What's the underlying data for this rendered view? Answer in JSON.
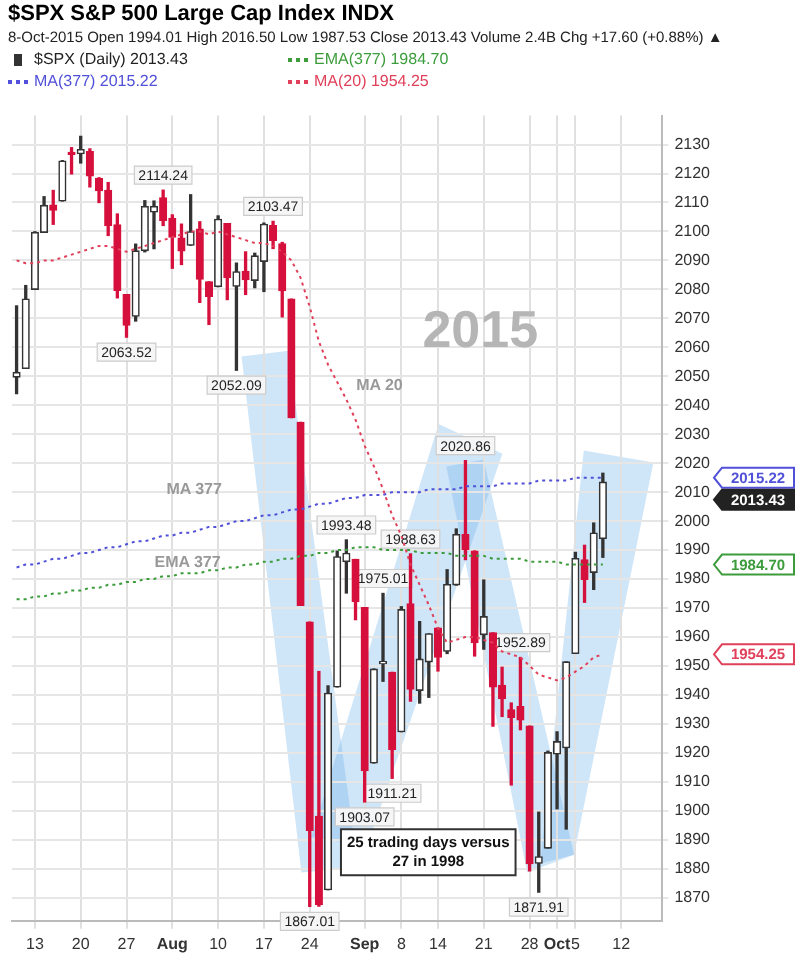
{
  "chart_data": {
    "type": "candlestick",
    "title": "$SPX S&P 500 Large Cap Index INDX",
    "subtitle": "8-Oct-2015   Open 1994.01  High 2016.50  Low 1987.53  Close 2013.43  Volume 2.4B  Chg +17.60 (+0.88%) ▲",
    "categories": [
      null,
      null,
      "13",
      null,
      null,
      null,
      null,
      "20",
      null,
      null,
      null,
      null,
      "27",
      null,
      null,
      null,
      null,
      "Aug",
      null,
      null,
      null,
      null,
      "10",
      null,
      null,
      null,
      null,
      "17",
      null,
      null,
      null,
      null,
      "24",
      null,
      null,
      null,
      null,
      null,
      "Sep",
      null,
      null,
      null,
      "8",
      null,
      null,
      null,
      "14",
      null,
      null,
      null,
      null,
      "21",
      null,
      null,
      null,
      null,
      "28",
      null,
      null,
      "Oct",
      null,
      "5",
      null,
      null,
      null,
      null,
      "12",
      null,
      null,
      null,
      null
    ],
    "series": [
      {
        "name": "$SPX (Daily) 2013.43",
        "colors": [
          "#333333",
          "#333333",
          "#333333",
          "#333333",
          "#d6103c",
          "#333333",
          "#d6103c",
          "#333333",
          "#d6103c",
          "#d6103c",
          "#d6103c",
          "#d6103c",
          "#d6103c",
          "#333333",
          "#333333",
          "#333333",
          "#d6103c",
          "#d6103c",
          "#d6103c",
          "#333333",
          "#d6103c",
          "#d6103c",
          "#333333",
          "#d6103c",
          "#333333",
          "#d6103c",
          "#333333",
          "#333333",
          "#d6103c",
          "#d6103c",
          "#d6103c",
          "#d6103c",
          "#d6103c",
          "#d6103c",
          "#333333",
          "#333333",
          "#333333",
          "#d6103c",
          "#d6103c",
          "#333333",
          "#333333",
          "#d6103c",
          "#333333",
          "#d6103c",
          "#333333",
          "#333333",
          "#d6103c",
          "#333333",
          "#333333",
          "#d6103c",
          "#d6103c",
          "#333333",
          "#d6103c",
          "#d6103c",
          "#d6103c",
          "#d6103c",
          "#d6103c",
          "#333333",
          "#333333",
          "#333333",
          "#333333",
          "#333333",
          "#d6103c",
          "#333333",
          "#333333",
          null,
          null,
          null,
          null,
          null,
          null
        ],
        "ohlc": [
          [
            2049.73,
            2074.28,
            2044.02,
            2051.31
          ],
          [
            2052.74,
            2081.31,
            2052.74,
            2076.62
          ],
          [
            2080.03,
            2099.88,
            2080.03,
            2099.6
          ],
          [
            2099.72,
            2111.98,
            2099.72,
            2108.95
          ],
          [
            2109.04,
            2114.14,
            2102.49,
            2107.4
          ],
          [
            2110.55,
            2124.42,
            2110.55,
            2124.29
          ],
          [
            2126.8,
            2128.91,
            2119.88,
            2126.64
          ],
          [
            2126.85,
            2132.82,
            2123.66,
            2128.28
          ],
          [
            2127.55,
            2128.49,
            2115.4,
            2119.21
          ],
          [
            2118.21,
            2118.51,
            2110,
            2114.15
          ],
          [
            2114.16,
            2116.87,
            2098.63,
            2102.15
          ],
          [
            2102.24,
            2106.01,
            2077.09,
            2079.65
          ],
          [
            2078.19,
            2078.19,
            2063.52,
            2067.64
          ],
          [
            2070.75,
            2095.6,
            2069.09,
            2093.25
          ],
          [
            2093.42,
            2110.6,
            2093,
            2108.57
          ],
          [
            2106.78,
            2110.48,
            2094.08,
            2108.63
          ],
          [
            2111.6,
            2114.24,
            2102.07,
            2103.84
          ],
          [
            2104.49,
            2105.7,
            2087.31,
            2098.04
          ],
          [
            2097.68,
            2102.51,
            2088.6,
            2093.32
          ],
          [
            2095.27,
            2112.66,
            2095.27,
            2099.84
          ],
          [
            2100.75,
            2103.32,
            2075.53,
            2083.56
          ],
          [
            2082.61,
            2082.61,
            2067.91,
            2077.57
          ],
          [
            2080.98,
            2105.35,
            2080.98,
            2104.18
          ],
          [
            2102.66,
            2102.66,
            2076.49,
            2084.07
          ],
          [
            2081.1,
            2089.06,
            2052.09,
            2086.05
          ],
          [
            2086.19,
            2092.93,
            2078.26,
            2083.39
          ],
          [
            2083.15,
            2092.45,
            2080.61,
            2091.54
          ],
          [
            2089.7,
            2102.87,
            2079.3,
            2102.44
          ],
          [
            2101.99,
            2103.47,
            2094.14,
            2096.92
          ],
          [
            2095.69,
            2096.17,
            2070.53,
            2079.61
          ],
          [
            2076.61,
            2076.61,
            2035.73,
            2035.73
          ],
          [
            2034.08,
            2034.08,
            1970.89,
            1970.89
          ],
          [
            1965.15,
            1965.15,
            1867.01,
            1893.21
          ],
          [
            1898.08,
            1948.04,
            1867.08,
            1867.61
          ],
          [
            1872.75,
            1943.09,
            1872.75,
            1940.51
          ],
          [
            1942.77,
            1989.6,
            1942.77,
            1987.66
          ],
          [
            1986.06,
            1993.48,
            1975.19,
            1988.87
          ],
          [
            1986.73,
            1986.73,
            1965.98,
            1972.18
          ],
          [
            1970.09,
            1970.09,
            1903.07,
            1913.85
          ],
          [
            1916.52,
            1948.91,
            1916.52,
            1948.86
          ],
          [
            1950.79,
            1975.01,
            1944.72,
            1951.13
          ],
          [
            1947.76,
            1947.76,
            1911.21,
            1921.22
          ],
          [
            1927.3,
            1970.42,
            1927.3,
            1969.41
          ],
          [
            1971.45,
            1988.63,
            1937.88,
            1942.04
          ],
          [
            1941.59,
            1965.29,
            1937.19,
            1952.29
          ],
          [
            1951.45,
            1961.05,
            1939.19,
            1961.05
          ],
          [
            1963.06,
            1963.06,
            1948.27,
            1953.03
          ],
          [
            1955.1,
            1983.19,
            1954.3,
            1978.09
          ],
          [
            1978.02,
            1997.26,
            1977.93,
            1995.31
          ],
          [
            1995.33,
            2020.86,
            1986.73,
            1990.2
          ],
          [
            1989.66,
            1989.66,
            1953.45,
            1958.03
          ],
          [
            1960.84,
            1979.64,
            1955.8,
            1966.97
          ],
          [
            1961.39,
            1961.39,
            1929.22,
            1942.74
          ],
          [
            1943.24,
            1949.52,
            1932.57,
            1938.76
          ],
          [
            1934.81,
            1937.17,
            1908.92,
            1932.24
          ],
          [
            1935.93,
            1952.89,
            1928,
            1931.34
          ],
          [
            1929.18,
            1929.18,
            1879.21,
            1881.77
          ],
          [
            1881.9,
            1899.48,
            1871.91,
            1884.09
          ],
          [
            1887.14,
            1920.53,
            1887.14,
            1920.03
          ],
          [
            1919.65,
            1927.21,
            1900.7,
            1923.82
          ],
          [
            1921.77,
            1951.36,
            1893.7,
            1951.36
          ],
          [
            1954.33,
            1989.17,
            1954.33,
            1987.05
          ],
          [
            1986.63,
            1991.62,
            1971.99,
            1979.92
          ],
          [
            1982.34,
            1999.31,
            1976.44,
            1995.83
          ],
          [
            1994.01,
            2016.5,
            1987.53,
            2013.43
          ],
          null,
          null,
          null,
          null,
          null,
          null
        ]
      },
      {
        "name": "EMA(377) 1984.70",
        "type": "line",
        "color": "#3c9c3c",
        "line_style": "dotted",
        "values": [
          1973,
          1973,
          1974,
          1974,
          1975,
          1975,
          1976,
          1976,
          1977,
          1977,
          1978,
          1978,
          1979,
          1979,
          1980,
          1980,
          1981,
          1981,
          1982,
          1982,
          1982,
          1983,
          1983,
          1984,
          1984,
          1985,
          1985,
          1986,
          1986,
          1987,
          1987,
          1988,
          1988,
          1989,
          1989,
          1990,
          1990,
          1991,
          1991,
          1991,
          1990,
          1990,
          1990,
          1990,
          1989,
          1989,
          1989,
          1989,
          1988,
          1988,
          1988,
          1988,
          1987,
          1987,
          1987,
          1987,
          1986,
          1986,
          1986,
          1986,
          1985,
          1985,
          1985,
          1985,
          1985,
          null,
          null,
          null,
          null,
          null,
          null
        ]
      },
      {
        "name": "MA(377) 2015.22",
        "type": "line",
        "color": "#5050d8",
        "line_style": "dotted",
        "values": [
          1984,
          1985,
          1985,
          1986,
          1987,
          1987,
          1988,
          1989,
          1989,
          1990,
          1991,
          1991,
          1992,
          1993,
          1993,
          1994,
          1995,
          1995,
          1996,
          1996,
          1997,
          1998,
          1998,
          1999,
          2000,
          2000,
          2001,
          2002,
          2002,
          2003,
          2004,
          2004,
          2005,
          2006,
          2006,
          2007,
          2008,
          2008,
          2009,
          2009,
          2009,
          2010,
          2010,
          2010,
          2010,
          2011,
          2011,
          2011,
          2011,
          2012,
          2012,
          2012,
          2012,
          2013,
          2013,
          2013,
          2013,
          2014,
          2014,
          2014,
          2014,
          2015,
          2015,
          2015,
          2015,
          null,
          null,
          null,
          null,
          null,
          null
        ]
      },
      {
        "name": "MA(20) 1954.25",
        "type": "line",
        "color": "#e0405a",
        "line_style": "dotted",
        "values": [
          2090,
          2089,
          2089,
          2090,
          2090,
          2091,
          2092,
          2093,
          2094,
          2095,
          2095,
          2094,
          2093,
          2094,
          2095,
          2096,
          2097,
          2098,
          2099,
          2100,
          2100,
          2099,
          2100,
          2099,
          2098,
          2097,
          2096,
          2096,
          2095,
          2093,
          2090,
          2084,
          2074,
          2062,
          2054,
          2048,
          2042,
          2035,
          2026,
          2019,
          2011,
          2002,
          1995,
          1985,
          1978,
          1971,
          1963,
          1958,
          1959,
          1960,
          1960,
          1959,
          1958,
          1955,
          1954,
          1953,
          1950,
          1947,
          1946,
          1945,
          1946,
          1948,
          1950,
          1953,
          1954,
          null,
          null,
          null,
          null,
          null,
          null
        ]
      }
    ],
    "ylim": [
      1862,
      2140
    ],
    "yticks": [
      1870,
      1880,
      1890,
      1900,
      1910,
      1920,
      1930,
      1940,
      1950,
      1960,
      1970,
      1980,
      1990,
      2000,
      2010,
      2020,
      2030,
      2040,
      2050,
      2060,
      2070,
      2080,
      2090,
      2100,
      2110,
      2120,
      2130
    ],
    "grid": true,
    "legend": "top left",
    "marker": "none",
    "annotations": [
      "2015",
      "MA 377",
      "EMA 377",
      "MA 20",
      "25 trading days versus 27 in 1998",
      {
        "text": "2114.24",
        "y": 2114.24
      },
      {
        "text": "2063.52",
        "y": 2063.52
      },
      {
        "text": "2052.09",
        "y": 2052.09
      },
      {
        "text": "2103.47",
        "y": 2103.47
      },
      {
        "text": "1867.01",
        "y": 1867.01
      },
      {
        "text": "1993.48",
        "y": 1993.48
      },
      {
        "text": "1903.07",
        "y": 1903.07
      },
      {
        "text": "1975.01",
        "y": 1975.01
      },
      {
        "text": "1911.21",
        "y": 1911.21
      },
      {
        "text": "1988.63",
        "y": 1988.63
      },
      {
        "text": "2020.86",
        "y": 2020.86
      },
      {
        "text": "1952.89",
        "y": 1952.89
      },
      {
        "text": "1871.91",
        "y": 1871.91
      },
      "2013.43",
      "2015.22",
      "1984.70",
      "1954.25"
    ]
  }
}
